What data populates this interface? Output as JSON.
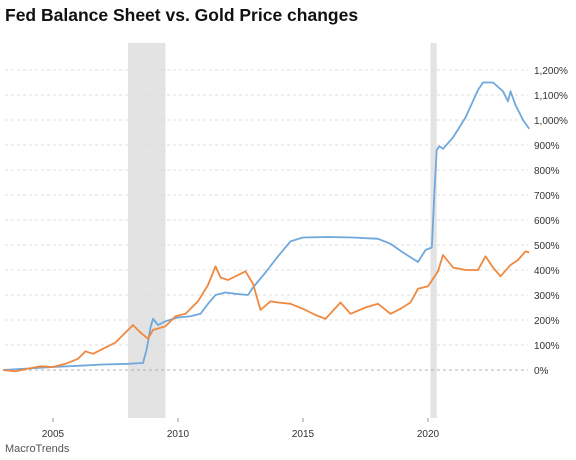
{
  "title": "Fed Balance Sheet vs. Gold Price changes",
  "source": "MacroTrends",
  "colors": {
    "fed_series": "#6fa8dc",
    "gold_series": "#f0883e",
    "recession": "#e3e3e3",
    "grid": "#dddddd",
    "zero_line": "#b0b0b0"
  },
  "chart_data": {
    "type": "line",
    "title": "Fed Balance Sheet vs. Gold Price changes",
    "xlabel": "",
    "ylabel": "",
    "xlim": [
      2003.0,
      2024.1
    ],
    "ylim": [
      -150,
      1300
    ],
    "x_ticks": [
      2005,
      2010,
      2015,
      2020
    ],
    "x_tick_labels": [
      "2005",
      "2010",
      "2015",
      "2020"
    ],
    "y_ticks": [
      0,
      100,
      200,
      300,
      400,
      500,
      600,
      700,
      800,
      900,
      1000,
      1100,
      1200
    ],
    "y_tick_labels": [
      "0%",
      "100%",
      "200%",
      "300%",
      "400%",
      "500%",
      "600%",
      "700%",
      "800%",
      "900%",
      "1,000%",
      "1,100%",
      "1,200%"
    ],
    "grid": true,
    "recessions": [
      [
        2008.0,
        2009.5
      ],
      [
        2020.1,
        2020.35
      ]
    ],
    "series": [
      {
        "key": "fed",
        "points": [
          [
            2003.0,
            0
          ],
          [
            2004.0,
            6
          ],
          [
            2005.0,
            12
          ],
          [
            2006.0,
            17
          ],
          [
            2007.0,
            22
          ],
          [
            2008.0,
            25
          ],
          [
            2008.6,
            28
          ],
          [
            2008.75,
            85
          ],
          [
            2008.9,
            170
          ],
          [
            2009.0,
            205
          ],
          [
            2009.2,
            180
          ],
          [
            2009.5,
            195
          ],
          [
            2009.8,
            205
          ],
          [
            2010.0,
            210
          ],
          [
            2010.5,
            215
          ],
          [
            2010.9,
            225
          ],
          [
            2011.2,
            265
          ],
          [
            2011.5,
            300
          ],
          [
            2011.9,
            310
          ],
          [
            2012.3,
            305
          ],
          [
            2012.8,
            300
          ],
          [
            2013.0,
            330
          ],
          [
            2013.5,
            390
          ],
          [
            2014.0,
            455
          ],
          [
            2014.5,
            515
          ],
          [
            2015.0,
            530
          ],
          [
            2016.0,
            532
          ],
          [
            2017.0,
            530
          ],
          [
            2018.0,
            525
          ],
          [
            2018.5,
            505
          ],
          [
            2019.0,
            470
          ],
          [
            2019.6,
            432
          ],
          [
            2019.9,
            480
          ],
          [
            2020.15,
            490
          ],
          [
            2020.25,
            700
          ],
          [
            2020.35,
            880
          ],
          [
            2020.45,
            895
          ],
          [
            2020.6,
            885
          ],
          [
            2021.0,
            930
          ],
          [
            2021.5,
            1010
          ],
          [
            2022.0,
            1120
          ],
          [
            2022.2,
            1150
          ],
          [
            2022.6,
            1150
          ],
          [
            2023.0,
            1115
          ],
          [
            2023.2,
            1075
          ],
          [
            2023.3,
            1115
          ],
          [
            2023.5,
            1060
          ],
          [
            2023.8,
            1000
          ],
          [
            2024.05,
            965
          ]
        ]
      },
      {
        "key": "gold",
        "points": [
          [
            2003.0,
            0
          ],
          [
            2003.5,
            -5
          ],
          [
            2004.0,
            5
          ],
          [
            2004.5,
            15
          ],
          [
            2005.0,
            12
          ],
          [
            2005.5,
            25
          ],
          [
            2006.0,
            45
          ],
          [
            2006.3,
            75
          ],
          [
            2006.6,
            65
          ],
          [
            2007.0,
            85
          ],
          [
            2007.5,
            110
          ],
          [
            2007.9,
            150
          ],
          [
            2008.2,
            180
          ],
          [
            2008.5,
            150
          ],
          [
            2008.8,
            125
          ],
          [
            2009.0,
            160
          ],
          [
            2009.5,
            175
          ],
          [
            2009.9,
            215
          ],
          [
            2010.3,
            225
          ],
          [
            2010.8,
            275
          ],
          [
            2011.2,
            340
          ],
          [
            2011.5,
            415
          ],
          [
            2011.7,
            370
          ],
          [
            2012.0,
            360
          ],
          [
            2012.3,
            375
          ],
          [
            2012.7,
            395
          ],
          [
            2013.0,
            345
          ],
          [
            2013.3,
            240
          ],
          [
            2013.7,
            275
          ],
          [
            2014.0,
            270
          ],
          [
            2014.5,
            265
          ],
          [
            2015.0,
            245
          ],
          [
            2015.5,
            220
          ],
          [
            2015.9,
            205
          ],
          [
            2016.5,
            270
          ],
          [
            2016.9,
            225
          ],
          [
            2017.5,
            250
          ],
          [
            2018.0,
            265
          ],
          [
            2018.5,
            225
          ],
          [
            2018.9,
            245
          ],
          [
            2019.3,
            270
          ],
          [
            2019.6,
            325
          ],
          [
            2020.0,
            335
          ],
          [
            2020.4,
            395
          ],
          [
            2020.6,
            460
          ],
          [
            2021.0,
            410
          ],
          [
            2021.5,
            400
          ],
          [
            2022.0,
            400
          ],
          [
            2022.3,
            455
          ],
          [
            2022.6,
            410
          ],
          [
            2022.9,
            375
          ],
          [
            2023.3,
            420
          ],
          [
            2023.6,
            440
          ],
          [
            2023.9,
            475
          ],
          [
            2024.05,
            470
          ]
        ]
      }
    ]
  }
}
